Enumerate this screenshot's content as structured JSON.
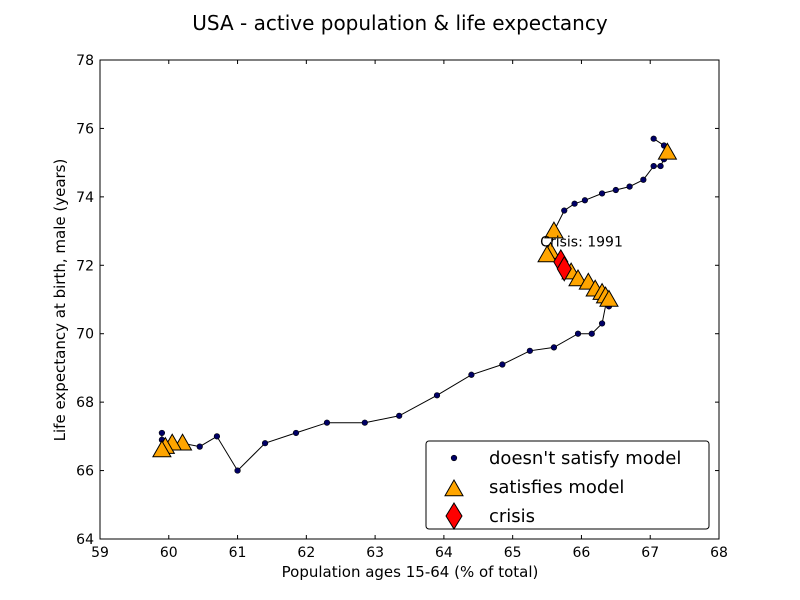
{
  "chart_data": {
    "type": "scatter",
    "title": "USA - active population & life expectancy",
    "xlabel": "Population ages 15-64 (% of total)",
    "ylabel": "Life expectancy at birth, male (years)",
    "xlim": [
      59,
      68
    ],
    "ylim": [
      64,
      78
    ],
    "xticks": [
      59,
      60,
      61,
      62,
      63,
      64,
      65,
      66,
      67,
      68
    ],
    "yticks": [
      64,
      66,
      68,
      70,
      72,
      74,
      76,
      78
    ],
    "grid": false,
    "legend_position": "bottom-right",
    "line_color": "#000000",
    "path": [
      [
        67.05,
        75.7
      ],
      [
        67.2,
        75.5
      ],
      [
        67.25,
        75.3
      ],
      [
        67.2,
        75.1
      ],
      [
        67.15,
        74.9
      ],
      [
        67.05,
        74.9
      ],
      [
        66.9,
        74.5
      ],
      [
        66.7,
        74.3
      ],
      [
        66.5,
        74.2
      ],
      [
        66.3,
        74.1
      ],
      [
        66.05,
        73.9
      ],
      [
        65.9,
        73.8
      ],
      [
        65.75,
        73.6
      ],
      [
        65.6,
        73.0
      ],
      [
        65.55,
        72.4
      ],
      [
        65.5,
        72.3
      ],
      [
        65.6,
        72.2
      ],
      [
        65.7,
        72.1
      ],
      [
        65.75,
        71.9
      ],
      [
        65.85,
        71.8
      ],
      [
        65.95,
        71.6
      ],
      [
        66.1,
        71.5
      ],
      [
        66.2,
        71.3
      ],
      [
        66.3,
        71.2
      ],
      [
        66.35,
        71.1
      ],
      [
        66.4,
        71.0
      ],
      [
        66.35,
        70.8
      ],
      [
        66.3,
        70.3
      ],
      [
        66.15,
        70.0
      ],
      [
        65.95,
        70.0
      ],
      [
        65.6,
        69.6
      ],
      [
        65.25,
        69.5
      ],
      [
        64.85,
        69.1
      ],
      [
        64.4,
        68.8
      ],
      [
        63.9,
        68.2
      ],
      [
        63.35,
        67.6
      ],
      [
        62.85,
        67.4
      ],
      [
        62.3,
        67.4
      ],
      [
        61.85,
        67.1
      ],
      [
        61.4,
        66.8
      ],
      [
        61.0,
        66.0
      ],
      [
        60.7,
        67.0
      ],
      [
        60.45,
        66.7
      ],
      [
        60.2,
        66.8
      ],
      [
        60.05,
        66.8
      ],
      [
        59.95,
        66.7
      ],
      [
        59.9,
        66.6
      ],
      [
        59.9,
        66.9
      ],
      [
        59.9,
        67.1
      ]
    ],
    "series": [
      {
        "name": "doesn't satisfy model",
        "marker": "circle",
        "color": "#000066",
        "points": [
          [
            67.05,
            75.7
          ],
          [
            67.2,
            75.5
          ],
          [
            67.2,
            75.1
          ],
          [
            67.15,
            74.9
          ],
          [
            67.05,
            74.9
          ],
          [
            66.9,
            74.5
          ],
          [
            66.7,
            74.3
          ],
          [
            66.5,
            74.2
          ],
          [
            66.3,
            74.1
          ],
          [
            66.05,
            73.9
          ],
          [
            65.9,
            73.8
          ],
          [
            65.75,
            73.6
          ],
          [
            66.4,
            70.8
          ],
          [
            66.3,
            70.3
          ],
          [
            66.15,
            70.0
          ],
          [
            65.95,
            70.0
          ],
          [
            65.6,
            69.6
          ],
          [
            65.25,
            69.5
          ],
          [
            64.85,
            69.1
          ],
          [
            64.4,
            68.8
          ],
          [
            63.9,
            68.2
          ],
          [
            63.35,
            67.6
          ],
          [
            62.85,
            67.4
          ],
          [
            62.3,
            67.4
          ],
          [
            61.85,
            67.1
          ],
          [
            61.4,
            66.8
          ],
          [
            61.0,
            66.0
          ],
          [
            60.7,
            67.0
          ],
          [
            60.45,
            66.7
          ],
          [
            59.9,
            66.9
          ],
          [
            59.9,
            67.1
          ]
        ]
      },
      {
        "name": "satisfies model",
        "marker": "triangle",
        "color": "#FFA500",
        "points": [
          [
            67.25,
            75.3
          ],
          [
            65.6,
            73.0
          ],
          [
            65.55,
            72.4
          ],
          [
            65.5,
            72.3
          ],
          [
            65.85,
            71.8
          ],
          [
            65.95,
            71.6
          ],
          [
            66.1,
            71.5
          ],
          [
            66.2,
            71.3
          ],
          [
            66.3,
            71.2
          ],
          [
            66.35,
            71.1
          ],
          [
            66.4,
            71.0
          ],
          [
            60.2,
            66.8
          ],
          [
            60.05,
            66.8
          ],
          [
            59.95,
            66.7
          ],
          [
            59.9,
            66.6
          ]
        ]
      },
      {
        "name": "crisis",
        "marker": "diamond",
        "color": "#FF0000",
        "points": [
          [
            65.7,
            72.1
          ],
          [
            65.75,
            71.9
          ]
        ]
      }
    ],
    "annotations": [
      {
        "text": "Crisis: 1991",
        "x": 65.4,
        "y": 72.55
      }
    ]
  }
}
